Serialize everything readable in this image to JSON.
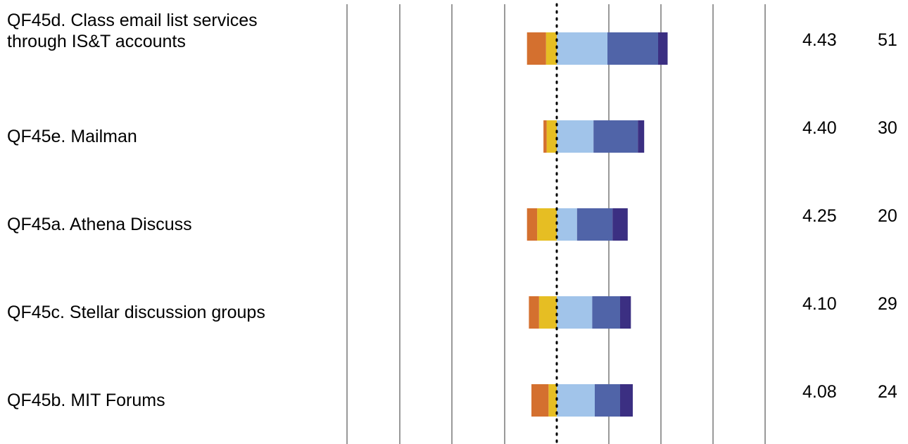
{
  "chart_data": {
    "type": "bar",
    "subtype": "diverging-stacked-horizontal",
    "grid": true,
    "legend": "none",
    "colors": [
      "#d4702f",
      "#e6be23",
      "#a1c4ea",
      "#5064a8",
      "#3b2f82"
    ],
    "xlim": [
      -1.3,
      2.0
    ],
    "gridline_step": 0.2,
    "rows": [
      {
        "label": "QF45d. Class email list services\nthrough IS&T accounts",
        "mean": "4.43",
        "n": "51",
        "segments": [
          0.15,
          0.085,
          0.4,
          0.4,
          0.075
        ]
      },
      {
        "label": "QF45e. Mailman",
        "mean": "4.40",
        "n": "30",
        "segments": [
          0.025,
          0.08,
          0.29,
          0.35,
          0.05
        ]
      },
      {
        "label": "QF45a. Athena Discuss",
        "mean": "4.25",
        "n": "20",
        "segments": [
          0.08,
          0.155,
          0.16,
          0.28,
          0.12
        ]
      },
      {
        "label": "QF45c. Stellar discussion groups",
        "mean": "4.10",
        "n": "29",
        "segments": [
          0.08,
          0.14,
          0.28,
          0.22,
          0.085
        ]
      },
      {
        "label": "QF45b. MIT Forums",
        "mean": "4.08",
        "n": "24",
        "segments": [
          0.135,
          0.065,
          0.3,
          0.2,
          0.1
        ]
      }
    ]
  }
}
